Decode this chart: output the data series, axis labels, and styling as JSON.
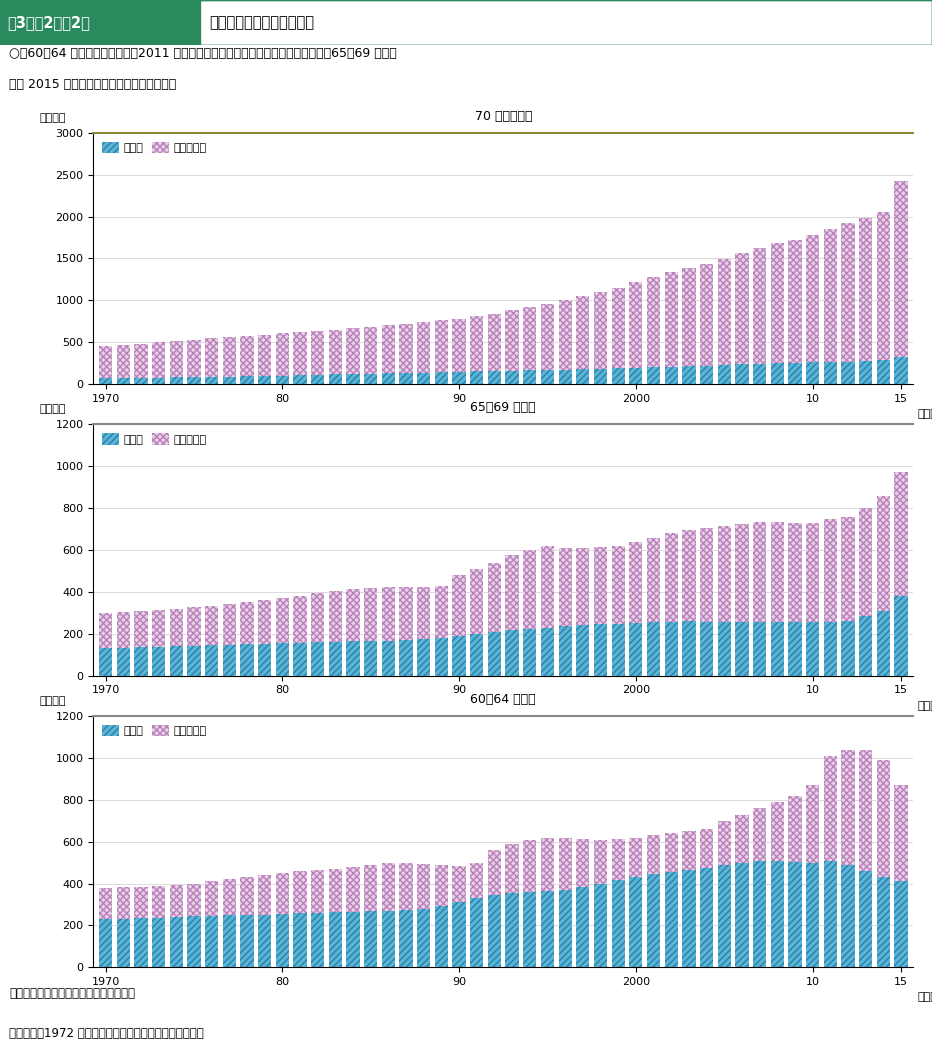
{
  "title_left": "第3－（2）－2図",
  "title_right": "高年齢者の就業者数の推移",
  "subtitle_line1": "○　60～64 歳層の就業者数は、2011 年をピークにその後減少が続いている。一方、65～69 歳層で",
  "subtitle_line2": "　は 2015 年まで増加傾向で推移している。",
  "footer1": "資料出所　総務省統計局「労働力調査」",
  "footer2": "　（注）　1972 年以前は、沖縄県分は含まれていない。",
  "years": [
    1970,
    1971,
    1972,
    1973,
    1974,
    1975,
    1976,
    1977,
    1978,
    1979,
    1980,
    1981,
    1982,
    1983,
    1984,
    1985,
    1986,
    1987,
    1988,
    1989,
    1990,
    1991,
    1992,
    1993,
    1994,
    1995,
    1996,
    1997,
    1998,
    1999,
    2000,
    2001,
    2002,
    2003,
    2004,
    2005,
    2006,
    2007,
    2008,
    2009,
    2010,
    2011,
    2012,
    2013,
    2014,
    2015
  ],
  "chart1_title": "70 歳以上人口",
  "chart1_employed": [
    68,
    70,
    72,
    77,
    82,
    85,
    88,
    90,
    92,
    95,
    100,
    105,
    110,
    115,
    120,
    125,
    128,
    132,
    138,
    143,
    148,
    153,
    157,
    160,
    163,
    167,
    172,
    178,
    182,
    188,
    195,
    200,
    208,
    215,
    222,
    228,
    235,
    242,
    248,
    252,
    258,
    262,
    268,
    275,
    285,
    320
  ],
  "chart1_total": [
    450,
    465,
    480,
    500,
    520,
    530,
    545,
    560,
    575,
    590,
    605,
    620,
    635,
    650,
    665,
    680,
    700,
    720,
    740,
    760,
    780,
    810,
    840,
    880,
    920,
    960,
    1000,
    1050,
    1100,
    1150,
    1220,
    1280,
    1340,
    1390,
    1440,
    1490,
    1560,
    1620,
    1680,
    1720,
    1780,
    1850,
    1920,
    1980,
    2050,
    2420
  ],
  "chart2_title": "65～69 歳人口",
  "chart2_employed": [
    130,
    133,
    135,
    138,
    140,
    143,
    145,
    148,
    150,
    152,
    155,
    158,
    160,
    162,
    164,
    165,
    168,
    170,
    175,
    180,
    190,
    200,
    210,
    220,
    225,
    230,
    237,
    242,
    245,
    248,
    252,
    255,
    258,
    260,
    258,
    255,
    255,
    255,
    255,
    255,
    255,
    258,
    260,
    285,
    310,
    380
  ],
  "chart2_total": [
    300,
    305,
    310,
    315,
    320,
    328,
    335,
    342,
    350,
    360,
    370,
    380,
    395,
    405,
    415,
    420,
    425,
    425,
    425,
    430,
    480,
    510,
    540,
    575,
    600,
    620,
    610,
    610,
    615,
    620,
    640,
    660,
    680,
    695,
    705,
    715,
    725,
    735,
    735,
    730,
    730,
    750,
    760,
    800,
    860,
    975
  ],
  "chart3_title": "60～64 歳人口",
  "chart3_employed": [
    230,
    232,
    235,
    238,
    240,
    243,
    245,
    248,
    250,
    252,
    255,
    258,
    260,
    263,
    265,
    268,
    270,
    275,
    280,
    295,
    310,
    330,
    345,
    355,
    360,
    365,
    370,
    385,
    400,
    415,
    430,
    445,
    455,
    465,
    475,
    490,
    500,
    510,
    510,
    505,
    500,
    510,
    490,
    460,
    430,
    410
  ],
  "chart3_total": [
    380,
    383,
    386,
    390,
    395,
    400,
    410,
    420,
    430,
    440,
    450,
    460,
    465,
    470,
    480,
    490,
    500,
    500,
    495,
    490,
    485,
    500,
    560,
    590,
    610,
    620,
    620,
    615,
    610,
    615,
    620,
    630,
    640,
    650,
    660,
    700,
    730,
    760,
    790,
    820,
    870,
    1010,
    1040,
    1040,
    990,
    870
  ],
  "employed_color": "#5ab4d6",
  "other_color": "#e8d0e8",
  "employed_hatch_color": "#2a7fa8",
  "other_hatch_color": "#b880b8",
  "employed_label": "就業者",
  "other_label": "就業者以外",
  "header_bg": "#2a8a5e",
  "top_border_color1": "#8b8b3a",
  "top_border_color2": "#888888"
}
